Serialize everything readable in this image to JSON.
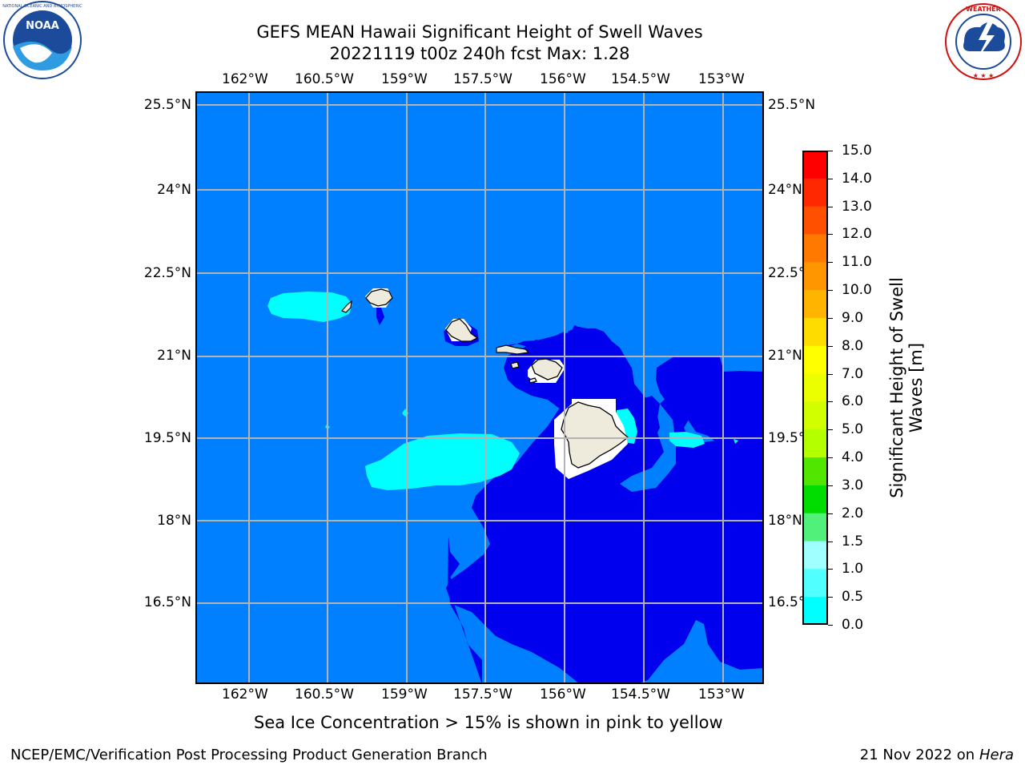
{
  "header": {
    "title_line1": "GEFS MEAN Hawaii Significant Height of Swell Waves",
    "title_line2": "20221119 t00z 240h fcst   Max: 1.28"
  },
  "logos": {
    "left": {
      "icon": "noaa-logo-icon",
      "text": "NOAA",
      "ring_text": "NATIONAL OCEANIC AND ATMOSPHERIC ADMINISTRATION · U.S. DEPARTMENT OF COMMERCE"
    },
    "right": {
      "icon": "nws-logo-icon",
      "ring_text": "NATIONAL WEATHER SERVICE"
    }
  },
  "map": {
    "lon_labels": [
      "162°W",
      "160.5°W",
      "159°W",
      "157.5°W",
      "156°W",
      "154.5°W",
      "153°W"
    ],
    "lat_labels": [
      "25.5°N",
      "24°N",
      "22.5°N",
      "21°N",
      "19.5°N",
      "18°N",
      "16.5°N"
    ],
    "colors": {
      "ocean_low": "#0000ee",
      "ocean_mid": "#0080ff",
      "ocean_high": "#00ffff",
      "land": "#eeebdc",
      "grid": "#b3b3b3"
    }
  },
  "colorbar": {
    "label": "Significant Height of Swell Waves [m]",
    "label_line1": "Significant Height of Swell",
    "label_line2": "Waves [m]",
    "ticks": [
      "15.0",
      "14.0",
      "13.0",
      "12.0",
      "11.0",
      "10.0",
      "9.0",
      "8.0",
      "7.0",
      "6.0",
      "5.0",
      "4.0",
      "3.0",
      "2.0",
      "1.5",
      "1.0",
      "0.5",
      "0.0"
    ],
    "colors": [
      "#ff0000",
      "#ff2800",
      "#ff5000",
      "#ff7800",
      "#ff9600",
      "#ffb400",
      "#ffdc00",
      "#ffff00",
      "#ebff00",
      "#d2ff00",
      "#b4ff00",
      "#50e600",
      "#00dc00",
      "#50f07a",
      "#a0ffff",
      "#50ffff",
      "#00ffff",
      "#0080ff",
      "#0000ee"
    ]
  },
  "footer": {
    "note": "Sea Ice Concentration > 15% is shown in pink to yellow",
    "left": "NCEP/EMC/Verification Post Processing Product Generation Branch",
    "date": "21 Nov 2022 on",
    "host": "Hera"
  }
}
